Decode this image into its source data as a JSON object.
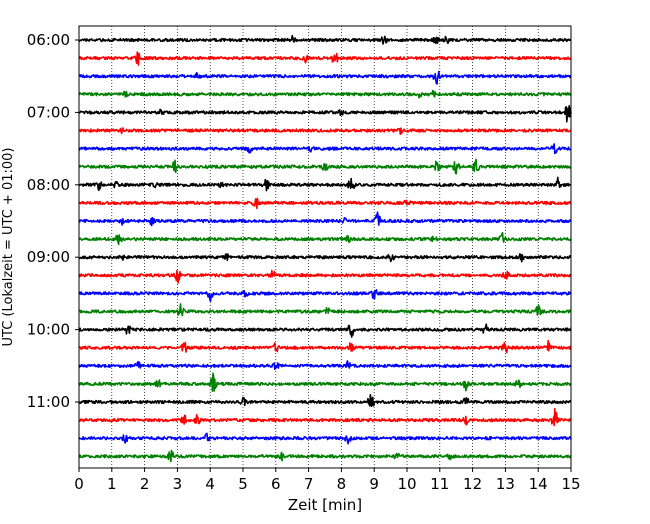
{
  "chart_data": {
    "type": "line",
    "xlabel": "Zeit  [min]",
    "ylabel": "UTC (Lokalzeit = UTC + 01:00)",
    "xlim": [
      0,
      15
    ],
    "x_ticks": [
      0,
      1,
      2,
      3,
      4,
      5,
      6,
      7,
      8,
      9,
      10,
      11,
      12,
      13,
      14,
      15
    ],
    "x_tick_labels": [
      "0",
      "1",
      "2",
      "3",
      "4",
      "5",
      "6",
      "7",
      "8",
      "9",
      "10",
      "11",
      "12",
      "13",
      "14",
      "15"
    ],
    "y_tick_labels": [
      "06:00",
      "07:00",
      "08:00",
      "09:00",
      "10:00",
      "11:00"
    ],
    "y_tick_trace_index": [
      0,
      4,
      8,
      12,
      16,
      20
    ],
    "trace_start_times": [
      "06:00",
      "06:15",
      "06:30",
      "06:45",
      "07:00",
      "07:15",
      "07:30",
      "07:45",
      "08:00",
      "08:15",
      "08:30",
      "08:45",
      "09:00",
      "09:15",
      "09:30",
      "09:45",
      "10:00",
      "10:15",
      "10:30",
      "10:45",
      "11:00",
      "11:15",
      "11:30",
      "11:45"
    ],
    "trace_colors": [
      "#000000",
      "#ff0000",
      "#0000ff",
      "#008000"
    ],
    "vertical_grid": true,
    "grid_style": "dotted",
    "trace_events": [
      [
        [
          6.5,
          0.35
        ],
        [
          9.3,
          0.45
        ],
        [
          10.9,
          0.45
        ],
        [
          11.2,
          0.4
        ]
      ],
      [
        [
          1.8,
          0.9
        ],
        [
          6.9,
          0.4
        ],
        [
          7.8,
          0.7
        ]
      ],
      [
        [
          3.6,
          0.25
        ],
        [
          10.9,
          0.9
        ]
      ],
      [
        [
          1.4,
          0.35
        ],
        [
          10.4,
          0.5
        ],
        [
          10.8,
          0.3
        ]
      ],
      [
        [
          2.5,
          0.25
        ],
        [
          8.0,
          0.25
        ],
        [
          14.9,
          1.2
        ]
      ],
      [
        [
          1.3,
          0.25
        ],
        [
          9.8,
          0.3
        ]
      ],
      [
        [
          5.2,
          0.6
        ],
        [
          7.1,
          0.35
        ],
        [
          14.5,
          0.7
        ]
      ],
      [
        [
          2.9,
          0.8
        ],
        [
          7.5,
          0.5
        ],
        [
          10.9,
          0.9
        ],
        [
          11.5,
          0.9
        ],
        [
          12.1,
          0.8
        ]
      ],
      [
        [
          0.6,
          0.5
        ],
        [
          1.1,
          0.4
        ],
        [
          2.3,
          0.4
        ],
        [
          4.3,
          0.5
        ],
        [
          5.7,
          0.9
        ],
        [
          8.3,
          0.9
        ],
        [
          14.6,
          0.7
        ]
      ],
      [
        [
          5.4,
          0.9
        ],
        [
          10.0,
          0.35
        ]
      ],
      [
        [
          1.3,
          0.4
        ],
        [
          2.2,
          0.5
        ],
        [
          8.1,
          0.3
        ],
        [
          9.1,
          0.9
        ]
      ],
      [
        [
          1.2,
          0.7
        ],
        [
          8.2,
          0.3
        ],
        [
          10.8,
          0.35
        ],
        [
          12.9,
          0.8
        ]
      ],
      [
        [
          1.3,
          0.3
        ],
        [
          4.5,
          0.3
        ],
        [
          9.5,
          0.7
        ],
        [
          13.5,
          0.5
        ]
      ],
      [
        [
          3.0,
          0.9
        ],
        [
          5.9,
          0.5
        ],
        [
          13.0,
          0.7
        ]
      ],
      [
        [
          4.0,
          0.9
        ],
        [
          5.1,
          0.5
        ],
        [
          9.0,
          0.6
        ]
      ],
      [
        [
          3.1,
          0.8
        ],
        [
          7.6,
          0.6
        ],
        [
          14.0,
          0.7
        ]
      ],
      [
        [
          1.5,
          0.6
        ],
        [
          8.3,
          1.0
        ],
        [
          12.4,
          0.6
        ]
      ],
      [
        [
          3.2,
          0.7
        ],
        [
          6.0,
          0.6
        ],
        [
          8.3,
          0.6
        ],
        [
          13.0,
          0.8
        ],
        [
          14.3,
          0.7
        ]
      ],
      [
        [
          1.8,
          0.4
        ],
        [
          6.0,
          0.5
        ],
        [
          8.2,
          0.5
        ]
      ],
      [
        [
          2.4,
          0.5
        ],
        [
          4.1,
          1.2
        ],
        [
          11.8,
          0.7
        ],
        [
          13.4,
          0.6
        ]
      ],
      [
        [
          5.0,
          0.4
        ],
        [
          8.9,
          0.9
        ],
        [
          11.8,
          0.5
        ]
      ],
      [
        [
          3.2,
          0.7
        ],
        [
          3.6,
          0.5
        ],
        [
          11.8,
          0.6
        ],
        [
          14.5,
          1.2
        ]
      ],
      [
        [
          1.4,
          0.6
        ],
        [
          3.9,
          0.5
        ],
        [
          8.2,
          0.5
        ]
      ],
      [
        [
          2.8,
          0.7
        ],
        [
          6.2,
          0.4
        ],
        [
          9.7,
          0.3
        ],
        [
          11.3,
          0.3
        ]
      ]
    ]
  }
}
